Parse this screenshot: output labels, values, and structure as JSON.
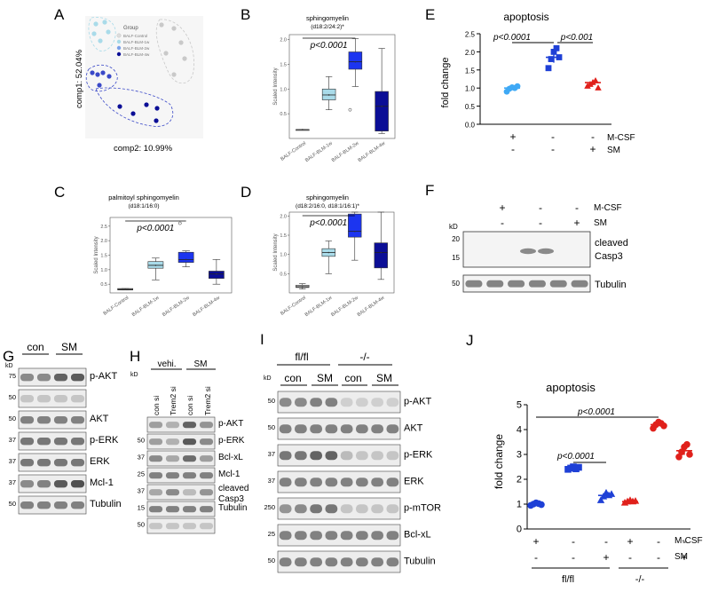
{
  "panels": {
    "A": "A",
    "B": "B",
    "C": "C",
    "D": "D",
    "E": "E",
    "F": "F",
    "G": "G",
    "H": "H",
    "I": "I",
    "J": "J"
  },
  "colors": {
    "control": "#c9c9c9",
    "w1": "#a9dbe9",
    "w2": "#1c35f0",
    "w4": "#0b0e96",
    "light_blue": "#3fa9f5",
    "blue": "#1f40d6",
    "red": "#e0201b",
    "dashed_blue": "#3a49c8"
  },
  "panelA": {
    "xlabel": "comp2: 10.99%",
    "ylabel": "comp1: 52.04%",
    "legend_title": "Group",
    "legend": [
      "BALF-Control",
      "BALF-BLM-1w",
      "BALF-BLM-2w",
      "BALF-BLM-4w"
    ]
  },
  "boxplots": {
    "categories": [
      "BALF-Control",
      "BALF-BLM-1w",
      "BALF-BLM-2w",
      "BALF-BLM-4w"
    ],
    "ylabel": "Scaled Intensity",
    "pvalue": "p<0.0001",
    "B": {
      "title1": "sphingomyelin",
      "title2": "(d18:2/24:2)*"
    },
    "C": {
      "title1": "palmitoyl sphingomyelin",
      "title2": "(d18:1/16:0)"
    },
    "D": {
      "title1": "sphingomyelin",
      "title2": "(d18:2/16:0, d18:1/16:1)*"
    }
  },
  "chart_data": [
    {
      "type": "scatter",
      "panel": "A",
      "xlabel": "comp2: 10.99%",
      "ylabel": "comp1: 52.04%",
      "series": [
        {
          "name": "BALF-Control"
        },
        {
          "name": "BALF-BLM-1w"
        },
        {
          "name": "BALF-BLM-2w"
        },
        {
          "name": "BALF-BLM-4w"
        }
      ]
    },
    {
      "type": "box",
      "panel": "B",
      "categories": [
        "BALF-Control",
        "BALF-BLM-1w",
        "BALF-BLM-2w",
        "BALF-BLM-4w"
      ],
      "ylim": [
        0,
        2.1
      ],
      "yticks": [
        "0.5",
        "1.0",
        "1.5",
        "2.0"
      ],
      "boxes": [
        {
          "q1": 0.18,
          "med": 0.18,
          "q3": 0.18,
          "lo": 0.18,
          "hi": 0.18
        },
        {
          "q1": 0.78,
          "med": 0.88,
          "q3": 1.0,
          "lo": 0.58,
          "hi": 1.25
        },
        {
          "q1": 1.4,
          "med": 1.55,
          "q3": 1.75,
          "lo": 1.05,
          "hi": 2.02,
          "out": [
            0.58
          ]
        },
        {
          "q1": 0.15,
          "med": 0.65,
          "q3": 0.95,
          "lo": 0.1,
          "hi": 1.82
        }
      ]
    },
    {
      "type": "box",
      "panel": "C",
      "categories": [
        "BALF-Control",
        "BALF-BLM-1w",
        "BALF-BLM-2w",
        "BALF-BLM-4w"
      ],
      "ylim": [
        0.2,
        2.8
      ],
      "yticks": [
        "0.5",
        "1.0",
        "1.5",
        "2.0",
        "2.5"
      ],
      "boxes": [
        {
          "q1": 0.3,
          "med": 0.32,
          "q3": 0.35,
          "lo": 0.3,
          "hi": 0.35
        },
        {
          "q1": 1.05,
          "med": 1.15,
          "q3": 1.28,
          "lo": 0.65,
          "hi": 1.4
        },
        {
          "q1": 1.25,
          "med": 1.35,
          "q3": 1.6,
          "lo": 1.1,
          "hi": 1.65,
          "out": [
            2.6
          ]
        },
        {
          "q1": 0.7,
          "med": 0.85,
          "q3": 0.95,
          "lo": 0.5,
          "hi": 1.35
        }
      ]
    },
    {
      "type": "box",
      "panel": "D",
      "categories": [
        "BALF-Control",
        "BALF-BLM-1w",
        "BALF-BLM-2w",
        "BALF-BLM-4w"
      ],
      "ylim": [
        0,
        2.1
      ],
      "yticks": [
        "0.5",
        "1.0",
        "1.5",
        "2.0"
      ],
      "boxes": [
        {
          "q1": 0.14,
          "med": 0.16,
          "q3": 0.2,
          "lo": 0.1,
          "hi": 0.24
        },
        {
          "q1": 0.95,
          "med": 1.05,
          "q3": 1.15,
          "lo": 0.5,
          "hi": 1.35
        },
        {
          "q1": 1.45,
          "med": 1.6,
          "q3": 2.05,
          "lo": 0.85,
          "hi": 2.1
        },
        {
          "q1": 0.65,
          "med": 1.05,
          "q3": 1.3,
          "lo": 0.35,
          "hi": 2.1
        }
      ]
    },
    {
      "type": "scatter",
      "panel": "E",
      "title": "apoptosis",
      "ylabel": "fold change",
      "ylim": [
        0,
        2.5
      ],
      "yticks": [
        "0.0",
        "0.5",
        "1.0",
        "1.5",
        "2.0",
        "2.5"
      ],
      "groups": [
        {
          "mean": 1.0,
          "points": [
            0.9,
            0.98,
            1.02,
            1.0,
            1.05
          ],
          "color": "#3fa9f5",
          "shape": "circle"
        },
        {
          "mean": 1.85,
          "points": [
            1.55,
            1.8,
            2.0,
            2.1,
            1.85
          ],
          "color": "#1f40d6",
          "shape": "square"
        },
        {
          "mean": 1.15,
          "points": [
            1.05,
            1.1,
            1.15,
            1.2,
            1.0
          ],
          "color": "#e0201b",
          "shape": "triangle"
        }
      ],
      "comparisons": [
        {
          "from": 0,
          "to": 1,
          "label": "p<0.0001"
        },
        {
          "from": 1,
          "to": 2,
          "label": "p<0.001"
        }
      ]
    },
    {
      "type": "scatter",
      "panel": "J",
      "title": "apoptosis",
      "ylabel": "fold change",
      "ylim": [
        0,
        5
      ],
      "yticks": [
        "0",
        "1",
        "2",
        "3",
        "4",
        "5"
      ],
      "groups": [
        {
          "mean": 1.0,
          "points": [
            0.95,
            1.0,
            1.05,
            1.02,
            0.98
          ],
          "color": "#1f40d6",
          "shape": "circle"
        },
        {
          "mean": 2.45,
          "points": [
            2.4,
            2.45,
            2.5,
            2.42,
            2.48
          ],
          "color": "#1f40d6",
          "shape": "square"
        },
        {
          "mean": 1.35,
          "points": [
            1.15,
            1.3,
            1.45,
            1.35,
            1.4
          ],
          "color": "#1f40d6",
          "shape": "triangle"
        },
        {
          "mean": 1.1,
          "points": [
            1.05,
            1.1,
            1.15,
            1.1,
            1.12
          ],
          "color": "#e0201b",
          "shape": "triangle"
        },
        {
          "mean": 4.2,
          "points": [
            4.05,
            4.2,
            4.3,
            4.25,
            4.15
          ],
          "color": "#e0201b",
          "shape": "circle"
        },
        {
          "mean": 3.15,
          "points": [
            2.9,
            3.1,
            3.3,
            3.4,
            3.0
          ],
          "color": "#e0201b",
          "shape": "circle"
        }
      ],
      "comparisons": [
        {
          "from": 1,
          "to": 2,
          "label": "p<0.0001"
        },
        {
          "from": 1,
          "to": 4,
          "label": "p<0.0001"
        }
      ]
    }
  ],
  "panelE": {
    "title": "apoptosis",
    "ylabel": "fold change",
    "pA": "p<0.0001",
    "pB": "p<0.001",
    "row1": {
      "label": "M-CSF",
      "signs": [
        "+",
        "-",
        "-"
      ]
    },
    "row2": {
      "label": "SM",
      "signs": [
        "-",
        "-",
        "+"
      ]
    }
  },
  "panelF": {
    "row1": {
      "label": "M-CSF",
      "signs": [
        "+",
        "-",
        "-"
      ]
    },
    "row2": {
      "label": "SM",
      "signs": [
        "-",
        "-",
        "+"
      ]
    },
    "kd": "kD",
    "bands": [
      {
        "label": "cleaved",
        "label2": "Casp3",
        "markers": [
          "20",
          "15"
        ]
      },
      {
        "label": "Tubulin",
        "markers": [
          "50"
        ]
      }
    ]
  },
  "panelG": {
    "kd": "kD",
    "groups": [
      "con",
      "SM"
    ],
    "blots": [
      {
        "label": "p-AKT",
        "marker": "75"
      },
      {
        "label": "",
        "marker": "50"
      },
      {
        "label": "AKT",
        "marker": "50"
      },
      {
        "label": "p-ERK",
        "marker": "37"
      },
      {
        "label": "ERK",
        "marker": "37"
      },
      {
        "label": "Mcl-1",
        "marker": "37"
      },
      {
        "label": "Tubulin",
        "marker": "50"
      }
    ]
  },
  "panelH": {
    "kd": "kD",
    "groups": [
      "vehi.",
      "SM"
    ],
    "lanes": [
      "con si",
      "Trem2 si",
      "con si",
      "Trem2 si"
    ],
    "blots": [
      {
        "label": "p-AKT",
        "marker": ""
      },
      {
        "label": "p-ERK",
        "marker": "50"
      },
      {
        "label": "Bcl-xL",
        "marker": "37"
      },
      {
        "label": "Mcl-1",
        "marker": "25"
      },
      {
        "label": "cleaved",
        "label2": "Casp3",
        "marker": "37"
      },
      {
        "label": "Tubulin",
        "marker": "15"
      },
      {
        "label": "",
        "marker": "50"
      }
    ]
  },
  "panelI": {
    "kd": "kD",
    "genotypes": [
      "fl/fl",
      "-/-"
    ],
    "groups": [
      "con",
      "SM",
      "con",
      "SM"
    ],
    "blots": [
      {
        "label": "p-AKT",
        "marker": "50"
      },
      {
        "label": "AKT",
        "marker": "50"
      },
      {
        "label": "p-ERK",
        "marker": "37"
      },
      {
        "label": "ERK",
        "marker": "37"
      },
      {
        "label": "p-mTOR",
        "marker": "250"
      },
      {
        "label": "Bcl-xL",
        "marker": "25"
      },
      {
        "label": "Tubulin",
        "marker": "50"
      }
    ]
  },
  "panelJ": {
    "title": "apoptosis",
    "ylabel": "fold change",
    "p1": "p<0.0001",
    "p2": "p<0.0001",
    "row1": {
      "label": "M-CSF",
      "signs": [
        "+",
        "-",
        "-",
        "+",
        "-",
        "-"
      ]
    },
    "row2": {
      "label": "SM",
      "signs": [
        "-",
        "-",
        "+",
        "-",
        "-",
        "+"
      ]
    },
    "genotypes": [
      "fl/fl",
      "-/-"
    ]
  }
}
